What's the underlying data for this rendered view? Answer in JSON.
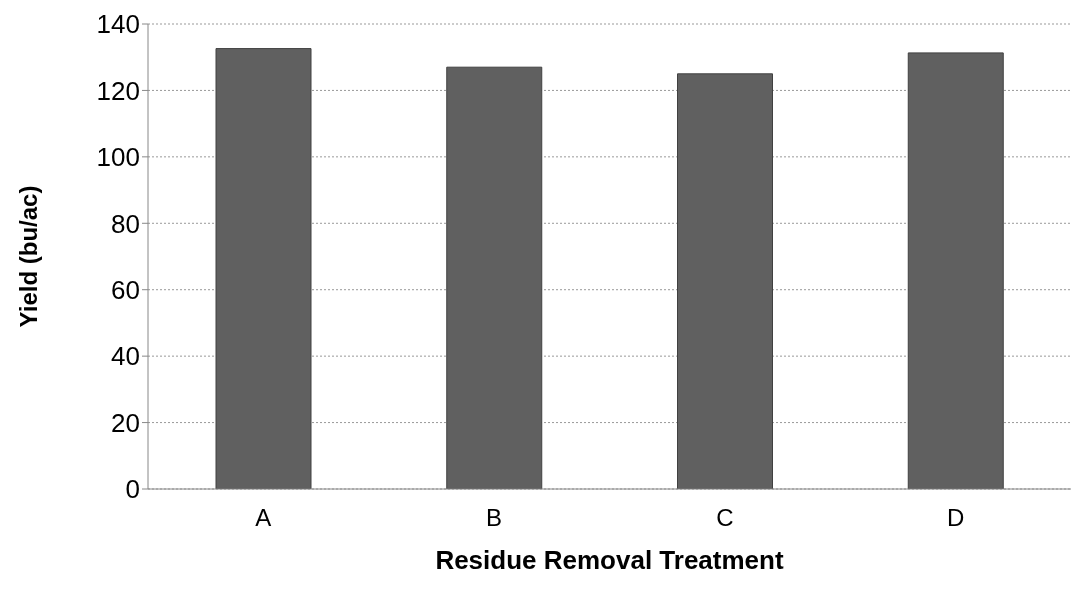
{
  "chart_data": {
    "type": "bar",
    "xlabel": "Residue Removal Treatment",
    "ylabel": "Yield (bu/ac)",
    "categories": [
      "A",
      "B",
      "C",
      "D"
    ],
    "values": [
      132.6,
      127,
      125,
      131.3
    ],
    "color": "#606060",
    "ylim": [
      0,
      140
    ],
    "yticks": [
      0,
      20,
      40,
      60,
      80,
      100,
      120,
      140
    ],
    "grid": "y"
  }
}
